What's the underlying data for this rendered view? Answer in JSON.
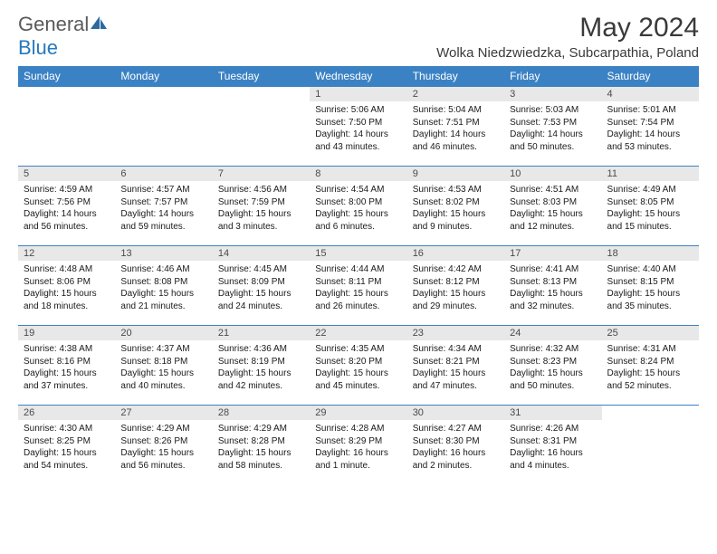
{
  "brand": {
    "word1": "General",
    "word2": "Blue"
  },
  "title": "May 2024",
  "location": "Wolka Niedzwiedzka, Subcarpathia, Poland",
  "colors": {
    "header_bg": "#3b82c4",
    "header_fg": "#ffffff",
    "daynum_bg": "#e8e8e8",
    "row_border": "#3b82c4",
    "logo_gray": "#5a5a5a",
    "logo_blue": "#2779bd"
  },
  "day_headers": [
    "Sunday",
    "Monday",
    "Tuesday",
    "Wednesday",
    "Thursday",
    "Friday",
    "Saturday"
  ],
  "weeks": [
    [
      null,
      null,
      null,
      {
        "n": "1",
        "sr": "5:06 AM",
        "ss": "7:50 PM",
        "dl": "14 hours and 43 minutes."
      },
      {
        "n": "2",
        "sr": "5:04 AM",
        "ss": "7:51 PM",
        "dl": "14 hours and 46 minutes."
      },
      {
        "n": "3",
        "sr": "5:03 AM",
        "ss": "7:53 PM",
        "dl": "14 hours and 50 minutes."
      },
      {
        "n": "4",
        "sr": "5:01 AM",
        "ss": "7:54 PM",
        "dl": "14 hours and 53 minutes."
      }
    ],
    [
      {
        "n": "5",
        "sr": "4:59 AM",
        "ss": "7:56 PM",
        "dl": "14 hours and 56 minutes."
      },
      {
        "n": "6",
        "sr": "4:57 AM",
        "ss": "7:57 PM",
        "dl": "14 hours and 59 minutes."
      },
      {
        "n": "7",
        "sr": "4:56 AM",
        "ss": "7:59 PM",
        "dl": "15 hours and 3 minutes."
      },
      {
        "n": "8",
        "sr": "4:54 AM",
        "ss": "8:00 PM",
        "dl": "15 hours and 6 minutes."
      },
      {
        "n": "9",
        "sr": "4:53 AM",
        "ss": "8:02 PM",
        "dl": "15 hours and 9 minutes."
      },
      {
        "n": "10",
        "sr": "4:51 AM",
        "ss": "8:03 PM",
        "dl": "15 hours and 12 minutes."
      },
      {
        "n": "11",
        "sr": "4:49 AM",
        "ss": "8:05 PM",
        "dl": "15 hours and 15 minutes."
      }
    ],
    [
      {
        "n": "12",
        "sr": "4:48 AM",
        "ss": "8:06 PM",
        "dl": "15 hours and 18 minutes."
      },
      {
        "n": "13",
        "sr": "4:46 AM",
        "ss": "8:08 PM",
        "dl": "15 hours and 21 minutes."
      },
      {
        "n": "14",
        "sr": "4:45 AM",
        "ss": "8:09 PM",
        "dl": "15 hours and 24 minutes."
      },
      {
        "n": "15",
        "sr": "4:44 AM",
        "ss": "8:11 PM",
        "dl": "15 hours and 26 minutes."
      },
      {
        "n": "16",
        "sr": "4:42 AM",
        "ss": "8:12 PM",
        "dl": "15 hours and 29 minutes."
      },
      {
        "n": "17",
        "sr": "4:41 AM",
        "ss": "8:13 PM",
        "dl": "15 hours and 32 minutes."
      },
      {
        "n": "18",
        "sr": "4:40 AM",
        "ss": "8:15 PM",
        "dl": "15 hours and 35 minutes."
      }
    ],
    [
      {
        "n": "19",
        "sr": "4:38 AM",
        "ss": "8:16 PM",
        "dl": "15 hours and 37 minutes."
      },
      {
        "n": "20",
        "sr": "4:37 AM",
        "ss": "8:18 PM",
        "dl": "15 hours and 40 minutes."
      },
      {
        "n": "21",
        "sr": "4:36 AM",
        "ss": "8:19 PM",
        "dl": "15 hours and 42 minutes."
      },
      {
        "n": "22",
        "sr": "4:35 AM",
        "ss": "8:20 PM",
        "dl": "15 hours and 45 minutes."
      },
      {
        "n": "23",
        "sr": "4:34 AM",
        "ss": "8:21 PM",
        "dl": "15 hours and 47 minutes."
      },
      {
        "n": "24",
        "sr": "4:32 AM",
        "ss": "8:23 PM",
        "dl": "15 hours and 50 minutes."
      },
      {
        "n": "25",
        "sr": "4:31 AM",
        "ss": "8:24 PM",
        "dl": "15 hours and 52 minutes."
      }
    ],
    [
      {
        "n": "26",
        "sr": "4:30 AM",
        "ss": "8:25 PM",
        "dl": "15 hours and 54 minutes."
      },
      {
        "n": "27",
        "sr": "4:29 AM",
        "ss": "8:26 PM",
        "dl": "15 hours and 56 minutes."
      },
      {
        "n": "28",
        "sr": "4:29 AM",
        "ss": "8:28 PM",
        "dl": "15 hours and 58 minutes."
      },
      {
        "n": "29",
        "sr": "4:28 AM",
        "ss": "8:29 PM",
        "dl": "16 hours and 1 minute."
      },
      {
        "n": "30",
        "sr": "4:27 AM",
        "ss": "8:30 PM",
        "dl": "16 hours and 2 minutes."
      },
      {
        "n": "31",
        "sr": "4:26 AM",
        "ss": "8:31 PM",
        "dl": "16 hours and 4 minutes."
      },
      null
    ]
  ],
  "labels": {
    "sunrise": "Sunrise:",
    "sunset": "Sunset:",
    "daylight": "Daylight:"
  }
}
